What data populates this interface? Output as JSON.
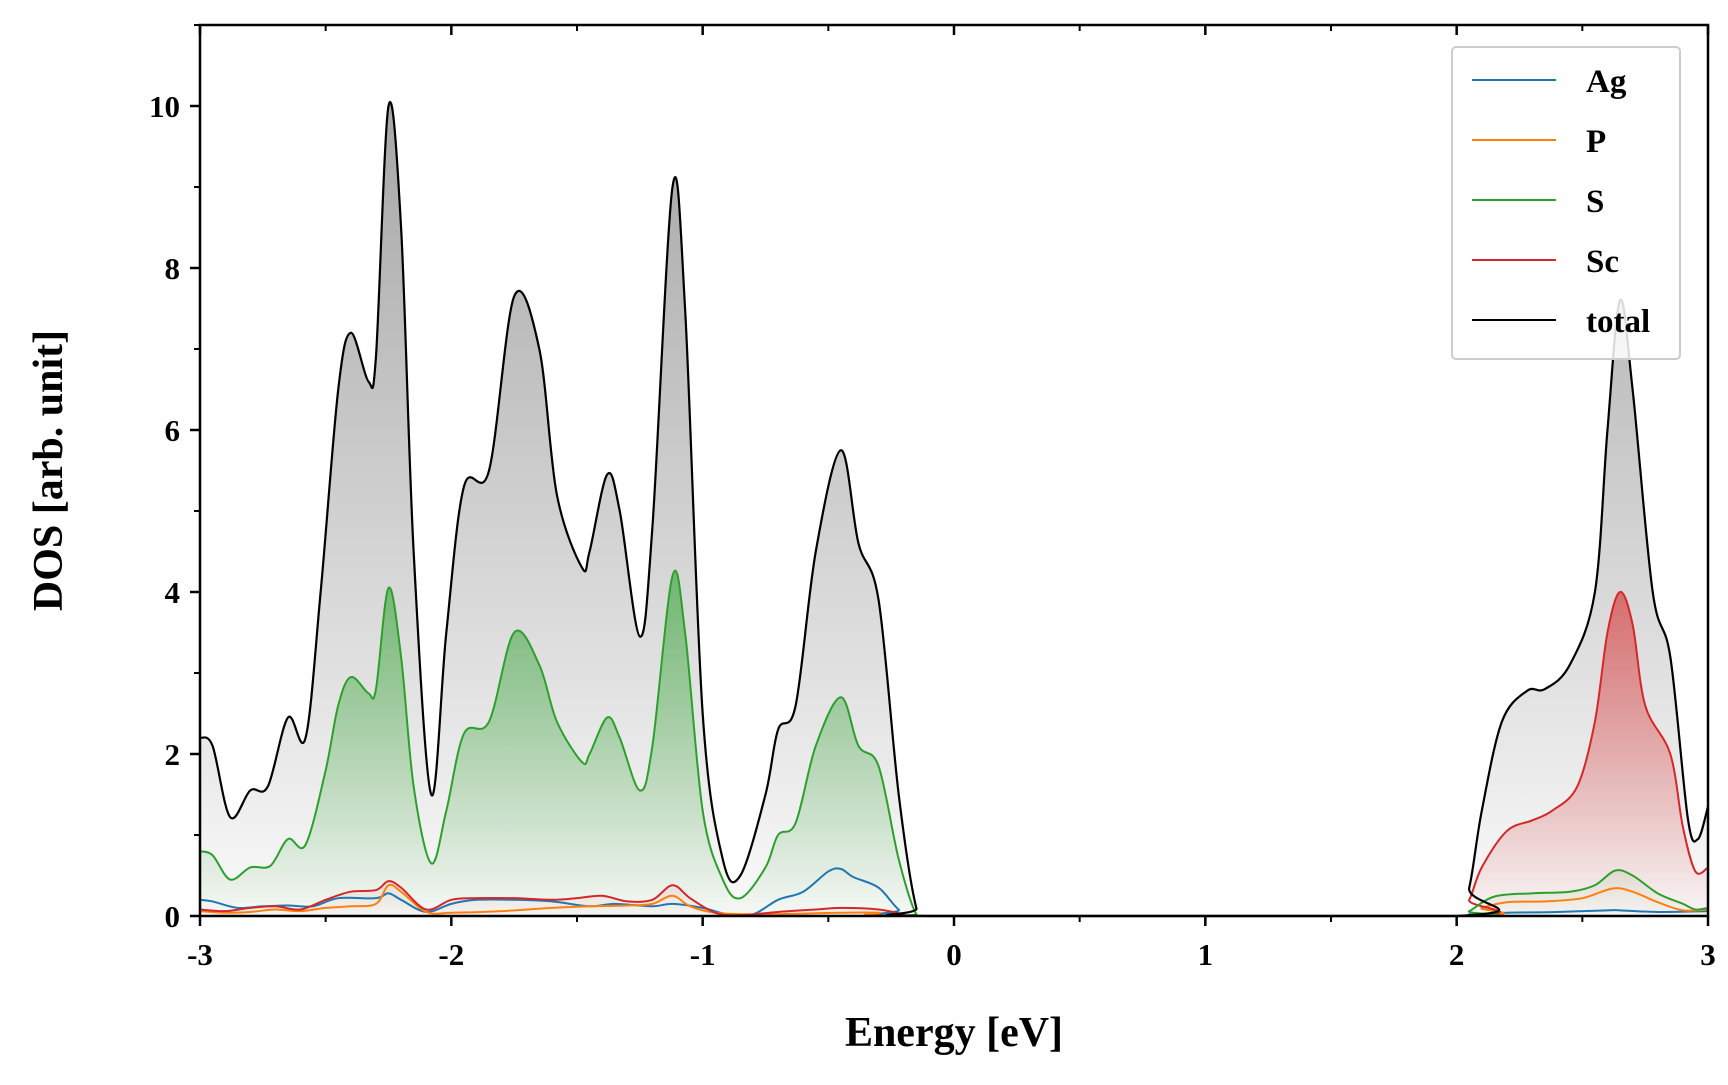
{
  "chart_data": {
    "type": "area",
    "xlabel": "Energy [eV]",
    "ylabel": "DOS [arb. unit]",
    "xlim": [
      -3,
      3
    ],
    "ylim": [
      0,
      11
    ],
    "x_ticks": [
      -3,
      -2,
      -1,
      0,
      1,
      2,
      3
    ],
    "x_tick_labels": [
      "-3",
      "-2",
      "-1",
      "0",
      "1",
      "2",
      "3"
    ],
    "y_ticks": [
      0,
      2,
      4,
      6,
      8,
      10
    ],
    "y_tick_labels": [
      "0",
      "2",
      "4",
      "6",
      "8",
      "10"
    ],
    "grid": false,
    "legend_position": "top-right",
    "series": [
      {
        "name": "Ag",
        "color": "#1f77b4",
        "fill": false,
        "points": [
          [
            -3.0,
            0.2
          ],
          [
            -2.95,
            0.18
          ],
          [
            -2.85,
            0.1
          ],
          [
            -2.75,
            0.12
          ],
          [
            -2.65,
            0.13
          ],
          [
            -2.55,
            0.12
          ],
          [
            -2.45,
            0.22
          ],
          [
            -2.3,
            0.22
          ],
          [
            -2.25,
            0.28
          ],
          [
            -2.2,
            0.2
          ],
          [
            -2.1,
            0.05
          ],
          [
            -2.0,
            0.15
          ],
          [
            -1.9,
            0.2
          ],
          [
            -1.75,
            0.2
          ],
          [
            -1.6,
            0.18
          ],
          [
            -1.45,
            0.12
          ],
          [
            -1.35,
            0.15
          ],
          [
            -1.2,
            0.12
          ],
          [
            -1.12,
            0.15
          ],
          [
            -1.0,
            0.1
          ],
          [
            -0.9,
            0.02
          ],
          [
            -0.8,
            0.02
          ],
          [
            -0.7,
            0.2
          ],
          [
            -0.6,
            0.3
          ],
          [
            -0.5,
            0.55
          ],
          [
            -0.45,
            0.58
          ],
          [
            -0.4,
            0.48
          ],
          [
            -0.3,
            0.35
          ],
          [
            -0.22,
            0.08
          ],
          [
            -0.15,
            0.0
          ],
          [
            2.0,
            0.0
          ],
          [
            2.05,
            0.02
          ],
          [
            2.2,
            0.04
          ],
          [
            2.4,
            0.05
          ],
          [
            2.6,
            0.07
          ],
          [
            2.65,
            0.07
          ],
          [
            2.8,
            0.05
          ],
          [
            3.0,
            0.06
          ]
        ]
      },
      {
        "name": "P",
        "color": "#ff7f0e",
        "fill": false,
        "points": [
          [
            -3.0,
            0.06
          ],
          [
            -2.9,
            0.04
          ],
          [
            -2.8,
            0.05
          ],
          [
            -2.7,
            0.08
          ],
          [
            -2.6,
            0.06
          ],
          [
            -2.5,
            0.1
          ],
          [
            -2.4,
            0.12
          ],
          [
            -2.3,
            0.15
          ],
          [
            -2.25,
            0.38
          ],
          [
            -2.2,
            0.3
          ],
          [
            -2.1,
            0.05
          ],
          [
            -2.0,
            0.04
          ],
          [
            -1.8,
            0.06
          ],
          [
            -1.6,
            0.1
          ],
          [
            -1.45,
            0.12
          ],
          [
            -1.3,
            0.13
          ],
          [
            -1.2,
            0.15
          ],
          [
            -1.12,
            0.25
          ],
          [
            -1.05,
            0.12
          ],
          [
            -0.95,
            0.04
          ],
          [
            -0.8,
            0.02
          ],
          [
            -0.6,
            0.03
          ],
          [
            -0.45,
            0.04
          ],
          [
            -0.3,
            0.04
          ],
          [
            -0.15,
            0.0
          ],
          [
            2.0,
            0.0
          ],
          [
            2.1,
            0.1
          ],
          [
            2.2,
            0.17
          ],
          [
            2.35,
            0.18
          ],
          [
            2.5,
            0.22
          ],
          [
            2.62,
            0.34
          ],
          [
            2.7,
            0.3
          ],
          [
            2.8,
            0.17
          ],
          [
            2.9,
            0.07
          ],
          [
            3.0,
            0.08
          ]
        ]
      },
      {
        "name": "S",
        "color": "#2ca02c",
        "fill": true,
        "points": [
          [
            -3.0,
            0.8
          ],
          [
            -2.95,
            0.75
          ],
          [
            -2.88,
            0.45
          ],
          [
            -2.8,
            0.6
          ],
          [
            -2.72,
            0.62
          ],
          [
            -2.65,
            0.95
          ],
          [
            -2.58,
            0.88
          ],
          [
            -2.5,
            1.8
          ],
          [
            -2.45,
            2.6
          ],
          [
            -2.4,
            2.95
          ],
          [
            -2.33,
            2.75
          ],
          [
            -2.3,
            2.8
          ],
          [
            -2.25,
            4.05
          ],
          [
            -2.2,
            3.2
          ],
          [
            -2.15,
            1.6
          ],
          [
            -2.08,
            0.65
          ],
          [
            -2.02,
            1.3
          ],
          [
            -1.95,
            2.25
          ],
          [
            -1.85,
            2.4
          ],
          [
            -1.75,
            3.5
          ],
          [
            -1.65,
            3.1
          ],
          [
            -1.58,
            2.4
          ],
          [
            -1.48,
            1.9
          ],
          [
            -1.45,
            2.0
          ],
          [
            -1.38,
            2.45
          ],
          [
            -1.33,
            2.2
          ],
          [
            -1.25,
            1.55
          ],
          [
            -1.2,
            2.1
          ],
          [
            -1.12,
            4.2
          ],
          [
            -1.07,
            3.5
          ],
          [
            -1.0,
            1.3
          ],
          [
            -0.92,
            0.45
          ],
          [
            -0.85,
            0.22
          ],
          [
            -0.75,
            0.6
          ],
          [
            -0.7,
            1.0
          ],
          [
            -0.63,
            1.15
          ],
          [
            -0.55,
            2.1
          ],
          [
            -0.45,
            2.7
          ],
          [
            -0.38,
            2.1
          ],
          [
            -0.3,
            1.85
          ],
          [
            -0.22,
            0.7
          ],
          [
            -0.15,
            0.02
          ],
          [
            -0.1,
            0.0
          ],
          [
            2.0,
            0.0
          ],
          [
            2.05,
            0.06
          ],
          [
            2.15,
            0.24
          ],
          [
            2.3,
            0.28
          ],
          [
            2.45,
            0.3
          ],
          [
            2.55,
            0.38
          ],
          [
            2.63,
            0.56
          ],
          [
            2.7,
            0.5
          ],
          [
            2.8,
            0.28
          ],
          [
            2.9,
            0.15
          ],
          [
            2.95,
            0.08
          ],
          [
            3.0,
            0.1
          ]
        ]
      },
      {
        "name": "Sc",
        "color": "#d62728",
        "fill": true,
        "points": [
          [
            -3.0,
            0.08
          ],
          [
            -2.9,
            0.06
          ],
          [
            -2.8,
            0.1
          ],
          [
            -2.7,
            0.12
          ],
          [
            -2.6,
            0.08
          ],
          [
            -2.5,
            0.2
          ],
          [
            -2.4,
            0.3
          ],
          [
            -2.3,
            0.32
          ],
          [
            -2.25,
            0.43
          ],
          [
            -2.2,
            0.35
          ],
          [
            -2.1,
            0.08
          ],
          [
            -2.0,
            0.2
          ],
          [
            -1.9,
            0.22
          ],
          [
            -1.75,
            0.22
          ],
          [
            -1.6,
            0.2
          ],
          [
            -1.5,
            0.22
          ],
          [
            -1.4,
            0.25
          ],
          [
            -1.3,
            0.18
          ],
          [
            -1.2,
            0.2
          ],
          [
            -1.12,
            0.38
          ],
          [
            -1.05,
            0.22
          ],
          [
            -0.95,
            0.04
          ],
          [
            -0.85,
            0.01
          ],
          [
            -0.7,
            0.05
          ],
          [
            -0.55,
            0.08
          ],
          [
            -0.45,
            0.1
          ],
          [
            -0.3,
            0.08
          ],
          [
            -0.2,
            0.02
          ],
          [
            -0.15,
            0.0
          ],
          [
            2.0,
            0.0
          ],
          [
            2.05,
            0.2
          ],
          [
            2.1,
            0.6
          ],
          [
            2.2,
            1.05
          ],
          [
            2.3,
            1.18
          ],
          [
            2.38,
            1.3
          ],
          [
            2.48,
            1.6
          ],
          [
            2.55,
            2.4
          ],
          [
            2.6,
            3.5
          ],
          [
            2.65,
            4.0
          ],
          [
            2.7,
            3.6
          ],
          [
            2.75,
            2.6
          ],
          [
            2.85,
            2.0
          ],
          [
            2.9,
            1.1
          ],
          [
            2.95,
            0.55
          ],
          [
            3.0,
            0.6
          ]
        ]
      },
      {
        "name": "total",
        "color": "#000000",
        "fill": true,
        "points": [
          [
            -3.0,
            2.2
          ],
          [
            -2.95,
            2.1
          ],
          [
            -2.88,
            1.22
          ],
          [
            -2.8,
            1.55
          ],
          [
            -2.73,
            1.6
          ],
          [
            -2.65,
            2.45
          ],
          [
            -2.58,
            2.2
          ],
          [
            -2.52,
            4.0
          ],
          [
            -2.45,
            6.5
          ],
          [
            -2.4,
            7.2
          ],
          [
            -2.33,
            6.6
          ],
          [
            -2.3,
            6.9
          ],
          [
            -2.25,
            10.0
          ],
          [
            -2.2,
            8.5
          ],
          [
            -2.15,
            4.5
          ],
          [
            -2.08,
            1.5
          ],
          [
            -2.02,
            3.5
          ],
          [
            -1.95,
            5.3
          ],
          [
            -1.85,
            5.5
          ],
          [
            -1.75,
            7.65
          ],
          [
            -1.65,
            7.0
          ],
          [
            -1.58,
            5.2
          ],
          [
            -1.48,
            4.3
          ],
          [
            -1.45,
            4.5
          ],
          [
            -1.38,
            5.45
          ],
          [
            -1.33,
            5.0
          ],
          [
            -1.25,
            3.45
          ],
          [
            -1.2,
            4.8
          ],
          [
            -1.12,
            9.0
          ],
          [
            -1.07,
            7.5
          ],
          [
            -1.0,
            2.5
          ],
          [
            -0.92,
            0.7
          ],
          [
            -0.85,
            0.5
          ],
          [
            -0.75,
            1.5
          ],
          [
            -0.7,
            2.3
          ],
          [
            -0.63,
            2.6
          ],
          [
            -0.55,
            4.5
          ],
          [
            -0.45,
            5.75
          ],
          [
            -0.38,
            4.6
          ],
          [
            -0.3,
            3.9
          ],
          [
            -0.22,
            1.5
          ],
          [
            -0.15,
            0.1
          ],
          [
            -0.1,
            0.0
          ],
          [
            2.0,
            0.0
          ],
          [
            2.05,
            0.35
          ],
          [
            2.1,
            1.3
          ],
          [
            2.18,
            2.4
          ],
          [
            2.28,
            2.78
          ],
          [
            2.35,
            2.8
          ],
          [
            2.45,
            3.1
          ],
          [
            2.55,
            4.0
          ],
          [
            2.6,
            6.0
          ],
          [
            2.65,
            7.6
          ],
          [
            2.7,
            6.5
          ],
          [
            2.78,
            4.0
          ],
          [
            2.85,
            3.2
          ],
          [
            2.92,
            1.2
          ],
          [
            2.96,
            0.95
          ],
          [
            3.0,
            1.35
          ]
        ]
      }
    ]
  }
}
